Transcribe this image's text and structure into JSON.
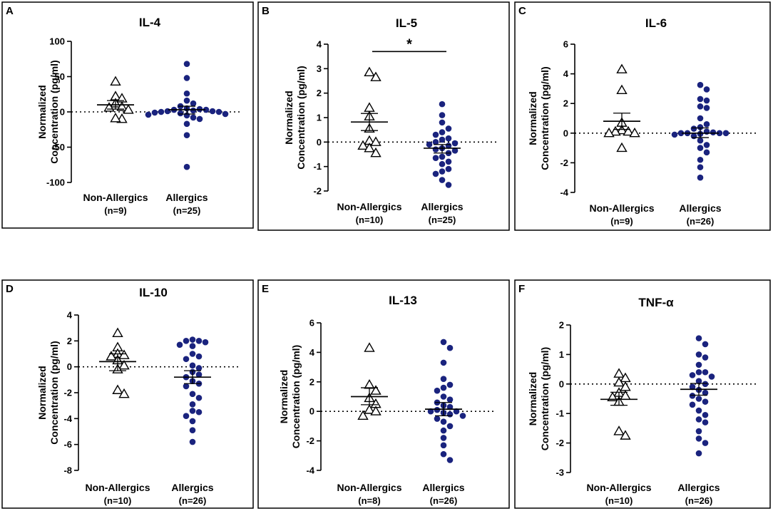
{
  "figure": {
    "point_color": "#1a237e",
    "open_marker_color": "#000000"
  },
  "chart_data": [
    {
      "letter": "A",
      "title": "IL-4",
      "type": "scatter",
      "ylabel": [
        "Normalized",
        "Concentration (pg/ml)"
      ],
      "ylim": [
        -100,
        100
      ],
      "yticks": [
        100,
        50,
        0,
        -50,
        -100
      ],
      "significance": "",
      "groups": [
        {
          "name": "Non-Allergics",
          "n_label": "(n=9)",
          "marker": "open-triangle",
          "mean": 10,
          "sem_low": 4,
          "sem_high": 16,
          "values": [
            43,
            22,
            19,
            12,
            7,
            6,
            3,
            -10,
            -9
          ]
        },
        {
          "name": "Allergics",
          "n_label": "(n=25)",
          "marker": "filled-circle",
          "mean": 3,
          "sem_low": -3,
          "sem_high": 8,
          "values": [
            68,
            48,
            26,
            16,
            12,
            8,
            5,
            4,
            3,
            3,
            2,
            1,
            1,
            0,
            0,
            -1,
            -2,
            -3,
            -4,
            -5,
            -8,
            -10,
            -17,
            -33,
            -78
          ]
        }
      ]
    },
    {
      "letter": "B",
      "title": "IL-5",
      "type": "scatter",
      "ylabel": [
        "Normalized",
        "Concentration (pg/ml)"
      ],
      "ylim": [
        -2,
        4
      ],
      "yticks": [
        4,
        3,
        2,
        1,
        0,
        -1,
        -2
      ],
      "significance": "*",
      "groups": [
        {
          "name": "Non-Allergics",
          "n_label": "(n=10)",
          "marker": "open-triangle",
          "mean": 0.82,
          "sem_low": 0.47,
          "sem_high": 1.17,
          "values": [
            2.85,
            2.65,
            1.4,
            1.05,
            0.55,
            0.05,
            0.0,
            -0.15,
            -0.25,
            -0.45
          ]
        },
        {
          "name": "Allergics",
          "n_label": "(n=25)",
          "marker": "filled-circle",
          "mean": -0.25,
          "sem_low": -0.45,
          "sem_high": -0.1,
          "values": [
            1.55,
            1.1,
            0.8,
            0.55,
            0.4,
            0.3,
            0.15,
            0.1,
            0.0,
            -0.05,
            -0.1,
            -0.15,
            -0.25,
            -0.3,
            -0.35,
            -0.45,
            -0.6,
            -0.65,
            -0.8,
            -0.9,
            -1.1,
            -1.2,
            -1.3,
            -1.55,
            -1.75
          ]
        }
      ]
    },
    {
      "letter": "C",
      "title": "IL-6",
      "type": "scatter",
      "ylabel": [
        "Normalized",
        "Concentration (pg/ml)"
      ],
      "ylim": [
        -4,
        6
      ],
      "yticks": [
        6,
        4,
        2,
        0,
        -2,
        -4
      ],
      "significance": "",
      "groups": [
        {
          "name": "Non-Allergics",
          "n_label": "(n=9)",
          "marker": "open-triangle",
          "mean": 0.8,
          "sem_low": 0.25,
          "sem_high": 1.35,
          "values": [
            4.3,
            2.9,
            0.7,
            0.2,
            0.1,
            0.1,
            0.0,
            0.0,
            -1.0
          ]
        },
        {
          "name": "Allergics",
          "n_label": "(n=26)",
          "marker": "filled-circle",
          "mean": 0.0,
          "sem_low": -0.3,
          "sem_high": 0.35,
          "values": [
            3.25,
            2.95,
            2.3,
            2.2,
            1.8,
            1.7,
            1.0,
            0.6,
            0.4,
            0.3,
            0.1,
            0.05,
            0.0,
            0.0,
            0.0,
            0.0,
            -0.05,
            -0.1,
            -0.2,
            -0.5,
            -0.8,
            -1.0,
            -1.3,
            -1.8,
            -2.3,
            -3.0
          ]
        }
      ]
    },
    {
      "letter": "D",
      "title": "IL-10",
      "type": "scatter",
      "ylabel": [
        "Normalized",
        "Concentration (pg/ml)"
      ],
      "ylim": [
        -8,
        4
      ],
      "yticks": [
        4,
        2,
        0,
        -2,
        -4,
        -6,
        -8
      ],
      "significance": "",
      "groups": [
        {
          "name": "Non-Allergics",
          "n_label": "(n=10)",
          "marker": "open-triangle",
          "mean": 0.4,
          "sem_low": -0.3,
          "sem_high": 1.0,
          "values": [
            2.6,
            1.5,
            1.0,
            0.9,
            0.8,
            0.5,
            0.1,
            -0.2,
            -1.8,
            -2.1
          ]
        },
        {
          "name": "Allergics",
          "n_label": "(n=26)",
          "marker": "filled-circle",
          "mean": -0.8,
          "sem_low": -1.3,
          "sem_high": -0.3,
          "values": [
            2.1,
            2.0,
            2.0,
            1.9,
            1.7,
            1.6,
            1.0,
            0.8,
            0.6,
            0.1,
            -0.1,
            -0.4,
            -0.6,
            -0.8,
            -1.1,
            -1.3,
            -1.5,
            -2.1,
            -2.4,
            -2.9,
            -3.4,
            -3.5,
            -3.8,
            -4.2,
            -4.9,
            -5.8
          ]
        }
      ]
    },
    {
      "letter": "E",
      "title": "IL-13",
      "type": "scatter",
      "ylabel": [
        "Normalized",
        "Concentration (pg/ml)"
      ],
      "ylim": [
        -4,
        6
      ],
      "yticks": [
        6,
        4,
        2,
        0,
        -2,
        -4
      ],
      "significance": "",
      "groups": [
        {
          "name": "Non-Allergics",
          "n_label": "(n=8)",
          "marker": "open-triangle",
          "mean": 1.0,
          "sem_low": 0.45,
          "sem_high": 1.6,
          "values": [
            4.3,
            1.8,
            1.4,
            0.9,
            0.5,
            0.1,
            0.0,
            -0.3
          ]
        },
        {
          "name": "Allergics",
          "n_label": "(n=26)",
          "marker": "filled-circle",
          "mean": 0.15,
          "sem_low": -0.3,
          "sem_high": 0.6,
          "values": [
            4.7,
            4.3,
            3.3,
            2.2,
            1.8,
            1.6,
            1.4,
            1.0,
            0.8,
            0.6,
            0.4,
            0.3,
            0.1,
            0.0,
            0.0,
            -0.1,
            -0.2,
            -0.3,
            -0.5,
            -0.7,
            -1.0,
            -1.3,
            -1.8,
            -2.3,
            -2.9,
            -3.3
          ]
        }
      ]
    },
    {
      "letter": "F",
      "title": "TNF-α",
      "type": "scatter",
      "ylabel": [
        "Normalized",
        "Concentration (pg/ml)"
      ],
      "ylim": [
        -3,
        2
      ],
      "yticks": [
        2,
        1,
        0,
        -1,
        -2,
        -3
      ],
      "significance": "",
      "groups": [
        {
          "name": "Non-Allergics",
          "n_label": "(n=10)",
          "marker": "open-triangle",
          "mean": -0.52,
          "sem_low": -0.72,
          "sem_high": -0.28,
          "values": [
            0.35,
            0.2,
            0.05,
            -0.1,
            -0.3,
            -0.4,
            -0.45,
            -0.6,
            -1.6,
            -1.75
          ]
        },
        {
          "name": "Allergics",
          "n_label": "(n=26)",
          "marker": "filled-circle",
          "mean": -0.18,
          "sem_low": -0.38,
          "sem_high": 0.02,
          "values": [
            1.55,
            1.35,
            1.0,
            0.9,
            0.65,
            0.4,
            0.4,
            0.3,
            0.25,
            0.1,
            0.0,
            -0.1,
            -0.2,
            -0.3,
            -0.4,
            -0.5,
            -0.6,
            -0.7,
            -0.9,
            -1.05,
            -1.2,
            -1.3,
            -1.6,
            -1.85,
            -2.0,
            -2.35
          ]
        }
      ]
    }
  ]
}
